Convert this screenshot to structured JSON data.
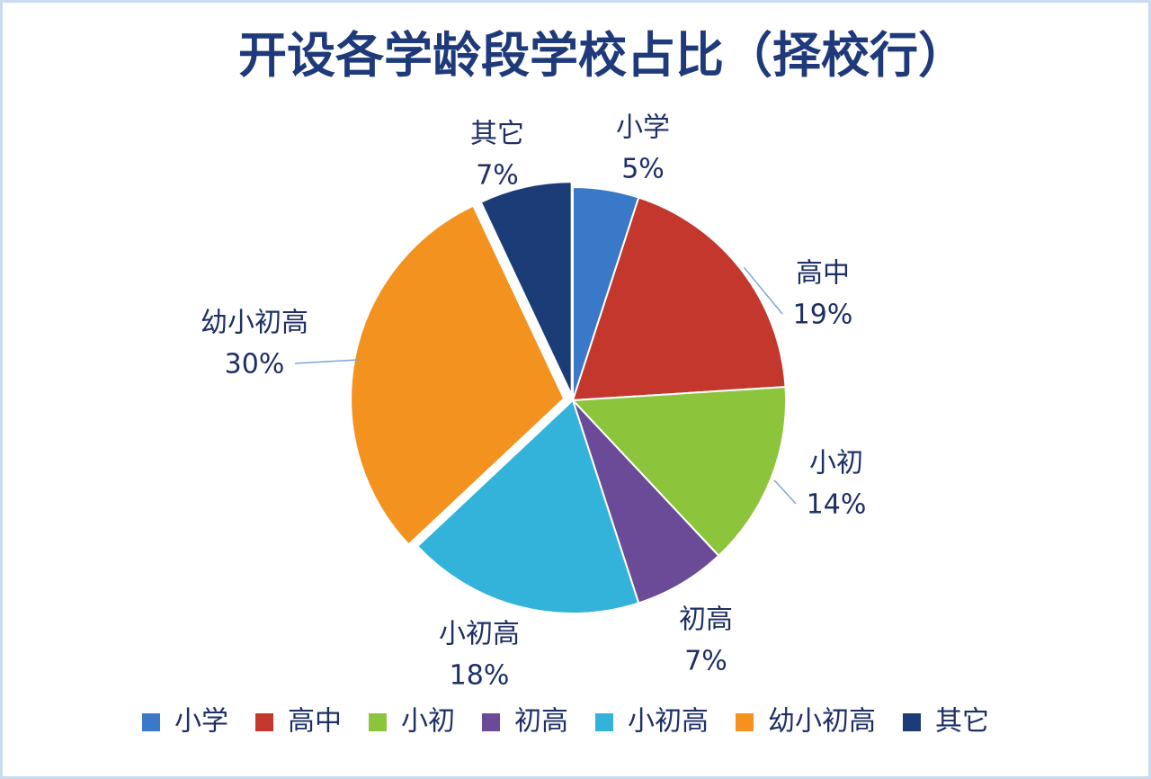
{
  "chart_data": {
    "type": "pie",
    "title": "开设各学龄段学校占比（择校行）",
    "categories": [
      "小学",
      "高中",
      "小初",
      "初高",
      "小初高",
      "幼小初高",
      "其它"
    ],
    "values": [
      5,
      19,
      14,
      7,
      18,
      30,
      7
    ],
    "value_labels": [
      "5%",
      "19%",
      "14%",
      "7%",
      "18%",
      "30%",
      "7%"
    ],
    "colors": [
      "#3a78c8",
      "#c4372c",
      "#8cc43c",
      "#6b4a98",
      "#34b3da",
      "#f3921f",
      "#1c3c78"
    ],
    "legend": "bottom"
  }
}
